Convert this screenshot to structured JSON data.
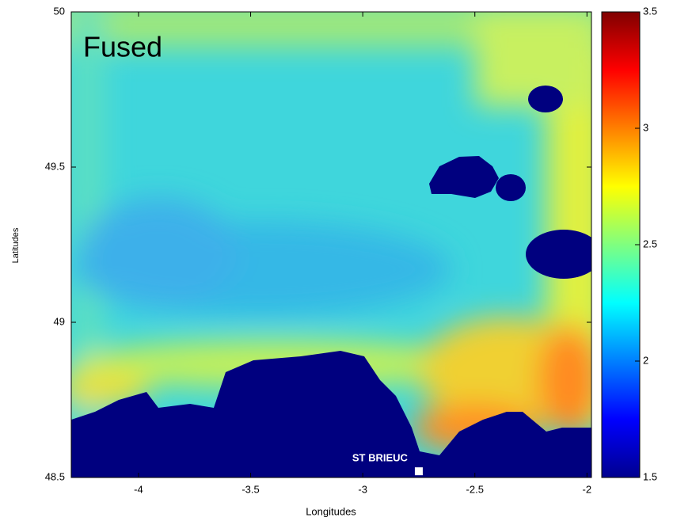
{
  "chart_data": {
    "type": "heatmap",
    "title": "Fused",
    "xlabel": "Longitudes",
    "ylabel": "Latitudes",
    "xlim": [
      -4.3,
      -1.98
    ],
    "xticks": [
      -4,
      -3.5,
      -3,
      -2.5,
      -2
    ],
    "ylim": [
      48.5,
      50
    ],
    "yticks": [
      48.5,
      49,
      49.5,
      50
    ],
    "colorbar": {
      "lim": [
        1.5,
        3.5
      ],
      "ticks": [
        1.5,
        2,
        2.5,
        3,
        3.5
      ]
    },
    "annotations": [
      {
        "text": "ST BRIEUC",
        "x": -2.75,
        "y": 48.52
      }
    ]
  }
}
